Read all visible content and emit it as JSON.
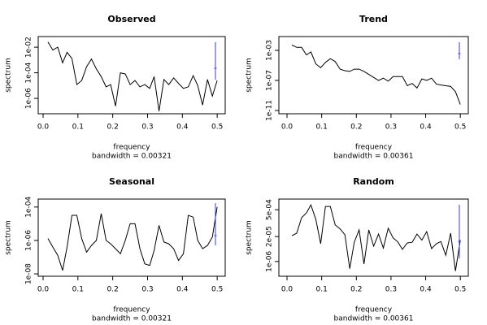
{
  "chart_data": [
    {
      "type": "line",
      "title": "Observed",
      "xlabel": "frequency",
      "ylabel": "spectrum",
      "subtitle": "bandwidth = 0.00321",
      "log_y": true,
      "color": "#000000",
      "x": [
        0.014,
        0.028,
        0.042,
        0.056,
        0.069,
        0.083,
        0.097,
        0.111,
        0.125,
        0.139,
        0.153,
        0.167,
        0.181,
        0.194,
        0.208,
        0.222,
        0.236,
        0.25,
        0.264,
        0.278,
        0.292,
        0.306,
        0.319,
        0.333,
        0.347,
        0.361,
        0.375,
        0.389,
        0.403,
        0.417,
        0.431,
        0.444,
        0.458,
        0.472,
        0.486,
        0.5
      ],
      "values": [
        0.025,
        0.006,
        0.01,
        0.0006,
        0.004,
        0.0013,
        1.2e-05,
        2.5e-05,
        0.0003,
        0.0012,
        0.0002,
        5e-05,
        8e-06,
        1.2e-05,
        2.5e-07,
        0.0001,
        8e-05,
        1.2e-05,
        2.5e-05,
        8e-06,
        1.2e-05,
        6e-06,
        5e-05,
        1e-07,
        3e-05,
        1.2e-05,
        4e-05,
        1.5e-05,
        6e-06,
        8e-06,
        6e-05,
        1e-05,
        3e-07,
        3e-05,
        1.5e-06,
        2.5e-05
      ],
      "xlim": [
        -0.014,
        0.523
      ],
      "ylim": [
        6.3e-08,
        0.068
      ],
      "xticks": [
        {
          "value": 0,
          "label": "0.0"
        },
        0.1,
        0.2,
        0.3,
        0.4,
        0.5
      ],
      "yticks": [
        {
          "value": 0.01,
          "label": "1e-02"
        },
        {
          "value": 0.0001,
          "label": "1e-04"
        },
        {
          "value": 1e-06,
          "label": "1e-06"
        }
      ]
    },
    {
      "type": "line",
      "title": "Trend",
      "xlabel": "frequency",
      "ylabel": "spectrum",
      "subtitle": "bandwidth = 0.00361",
      "log_y": true,
      "color": "#000000",
      "x": [
        0.014,
        0.028,
        0.042,
        0.056,
        0.069,
        0.083,
        0.097,
        0.111,
        0.125,
        0.139,
        0.153,
        0.167,
        0.181,
        0.194,
        0.208,
        0.222,
        0.236,
        0.25,
        0.264,
        0.278,
        0.292,
        0.306,
        0.319,
        0.333,
        0.347,
        0.361,
        0.375,
        0.389,
        0.403,
        0.417,
        0.431,
        0.444,
        0.458,
        0.472,
        0.486,
        0.5
      ],
      "values": [
        0.005,
        0.0025,
        0.0025,
        0.00025,
        0.00063,
        1.6e-05,
        5e-06,
        2.5e-05,
        8e-05,
        3.2e-05,
        3.2e-06,
        2e-06,
        1.6e-06,
        3.2e-06,
        3.2e-06,
        1.6e-06,
        6.3e-07,
        2.5e-07,
        1e-07,
        2e-07,
        8e-08,
        3.2e-07,
        3.2e-07,
        3.2e-07,
        2e-08,
        4e-08,
        1e-08,
        1.6e-07,
        1e-07,
        2e-07,
        3.2e-08,
        2.5e-08,
        2e-08,
        1.6e-08,
        3.2e-09,
        6.3e-11
      ],
      "xlim": [
        -0.0235,
        0.523
      ],
      "ylim": [
        3.7e-12,
        0.069
      ],
      "xticks": [
        {
          "value": 0,
          "label": "0.0"
        },
        0.1,
        0.2,
        0.3,
        0.4,
        0.5
      ],
      "yticks": [
        {
          "value": 0.001,
          "label": "1e-03"
        },
        {
          "value": 1e-07,
          "label": "1e-07"
        },
        {
          "value": 1e-11,
          "label": "1e-11"
        }
      ]
    },
    {
      "type": "line",
      "title": "Seasonal",
      "xlabel": "frequency",
      "ylabel": "spectrum",
      "subtitle": "bandwidth = 0.00321",
      "log_y": true,
      "color": "#000000",
      "x": [
        0.014,
        0.028,
        0.042,
        0.056,
        0.069,
        0.083,
        0.097,
        0.111,
        0.125,
        0.139,
        0.153,
        0.167,
        0.181,
        0.194,
        0.208,
        0.222,
        0.236,
        0.25,
        0.264,
        0.278,
        0.292,
        0.306,
        0.319,
        0.333,
        0.347,
        0.361,
        0.375,
        0.389,
        0.403,
        0.417,
        0.431,
        0.444,
        0.458,
        0.472,
        0.486,
        0.5
      ],
      "values": [
        1.3e-06,
        4e-07,
        1.3e-07,
        1.6e-08,
        4e-07,
        3.2e-05,
        3.2e-05,
        1.3e-06,
        2e-07,
        5e-07,
        1e-06,
        4e-05,
        1e-06,
        6.3e-07,
        3.2e-07,
        1.6e-07,
        1e-06,
        1e-05,
        1e-05,
        3.2e-07,
        4e-08,
        3.2e-08,
        2.5e-07,
        8e-06,
        8e-07,
        6.3e-07,
        3.2e-07,
        6.3e-08,
        1.6e-07,
        3.2e-05,
        2.5e-05,
        1e-06,
        3.2e-07,
        5e-07,
        1.6e-06,
        0.0001
      ],
      "xlim": [
        -0.014,
        0.523
      ],
      "ylim": [
        7.2e-09,
        0.0003
      ],
      "xticks": [
        {
          "value": 0,
          "label": "0.0"
        },
        0.1,
        0.2,
        0.3,
        0.4,
        0.5
      ],
      "yticks": [
        {
          "value": 0.0001,
          "label": "1e-04"
        },
        {
          "value": 1e-06,
          "label": "1e-06"
        },
        {
          "value": 1e-08,
          "label": "1e-08"
        }
      ]
    },
    {
      "type": "line",
      "title": "Random",
      "xlabel": "frequency",
      "ylabel": "spectrum",
      "subtitle": "bandwidth = 0.00361",
      "log_y": true,
      "color": "#000000",
      "x": [
        0.014,
        0.028,
        0.042,
        0.056,
        0.069,
        0.083,
        0.097,
        0.111,
        0.125,
        0.139,
        0.153,
        0.167,
        0.181,
        0.194,
        0.208,
        0.222,
        0.236,
        0.25,
        0.264,
        0.278,
        0.292,
        0.306,
        0.319,
        0.333,
        0.347,
        0.361,
        0.375,
        0.389,
        0.403,
        0.417,
        0.431,
        0.444,
        0.458,
        0.472,
        0.486,
        0.5
      ],
      "values": [
        2.2e-05,
        3e-05,
        0.00019,
        0.00034,
        0.00089,
        0.00016,
        8.5e-06,
        0.00074,
        0.00074,
        8e-05,
        5e-05,
        2.5e-05,
        4.2e-07,
        1e-05,
        4.4e-05,
        7.4e-07,
        4.4e-05,
        6.3e-06,
        2.7e-05,
        5e-06,
        5.4e-05,
        1.7e-05,
        1.1e-05,
        4.3e-06,
        9.3e-06,
        1e-05,
        2.7e-05,
        1.3e-05,
        3.6e-05,
        4.7e-06,
        8.5e-06,
        1.1e-05,
        2.1e-06,
        3e-05,
        3.2e-07,
        1.3e-05
      ],
      "xlim": [
        -0.0235,
        0.523
      ],
      "ylim": [
        1.7e-07,
        0.0018
      ],
      "xticks": [
        {
          "value": 0,
          "label": "0.0"
        },
        0.1,
        0.2,
        0.3,
        0.4,
        0.5
      ],
      "yticks": [
        {
          "value": 0.0005,
          "label": "5e-04"
        },
        {
          "value": 2e-05,
          "label": "2e-05"
        },
        {
          "value": 1e-06,
          "label": "1e-06"
        }
      ]
    }
  ]
}
